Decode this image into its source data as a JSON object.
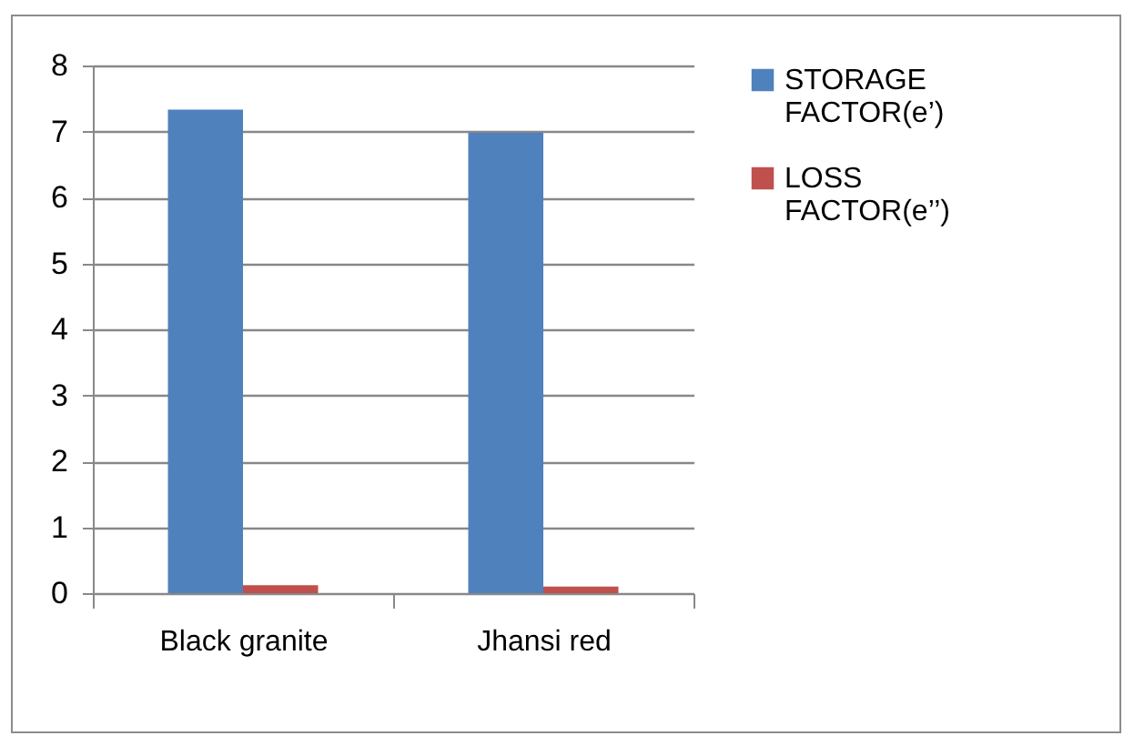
{
  "chart_data": {
    "type": "bar",
    "categories": [
      "Black granite",
      "Jhansi red"
    ],
    "series": [
      {
        "name": "STORAGE FACTOR(e’)",
        "color": "#4f81bd",
        "values": [
          7.33,
          6.98
        ]
      },
      {
        "name": "LOSS FACTOR(e’’)",
        "color": "#c0504d",
        "values": [
          0.12,
          0.1
        ]
      }
    ],
    "ylim": [
      0,
      8
    ],
    "yticks": [
      0,
      1,
      2,
      3,
      4,
      5,
      6,
      7,
      8
    ],
    "grid": "y",
    "legend": "right"
  }
}
